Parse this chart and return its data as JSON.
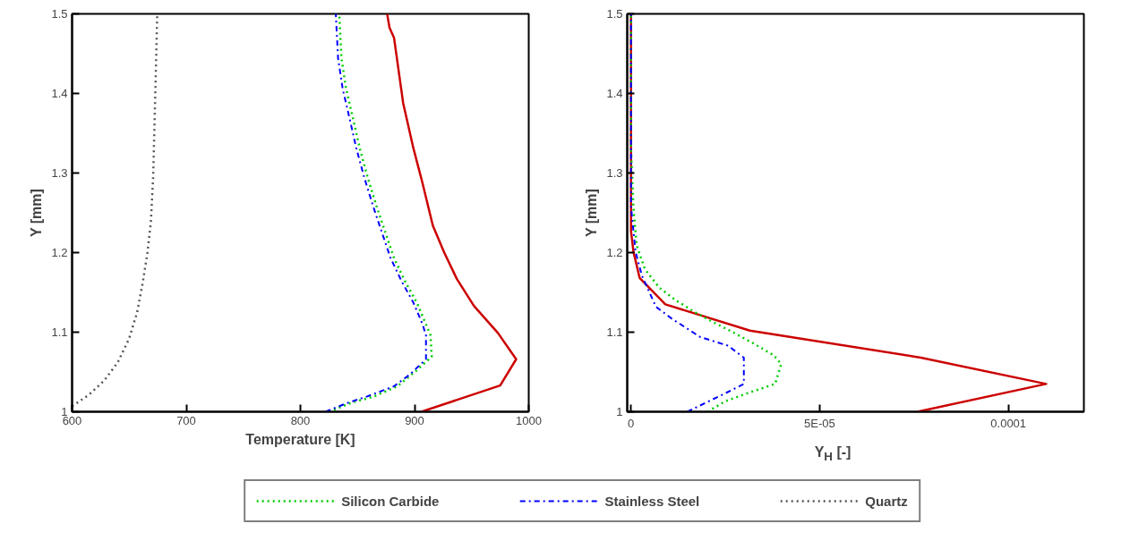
{
  "chart_data": [
    {
      "type": "line",
      "xlabel": "Temperature [K]",
      "ylabel": "Y [mm]",
      "xlim": [
        600,
        1000
      ],
      "ylim": [
        1,
        1.5
      ],
      "xticks": [
        600,
        700,
        800,
        900,
        1000
      ],
      "yticks": [
        1,
        1.1,
        1.2,
        1.3,
        1.4,
        1.5
      ],
      "grid": false,
      "legend": "bottom",
      "series": [
        {
          "color": "#cc0000",
          "line_style": "solid",
          "x": [
            906,
            975,
            989,
            973,
            952,
            937,
            926,
            916,
            907,
            899,
            890,
            882,
            878,
            876
          ],
          "values": [
            1.0,
            1.033,
            1.066,
            1.099,
            1.133,
            1.167,
            1.2,
            1.234,
            1.287,
            1.331,
            1.388,
            1.47,
            1.483,
            1.5
          ]
        },
        {
          "name": "Silicon Carbide",
          "color": "#00cc00",
          "line_style": "dotted",
          "x": [
            825,
            844,
            864,
            885,
            901,
            915,
            914,
            910,
            902,
            892,
            882,
            874,
            867,
            859,
            852,
            846,
            840,
            836,
            834
          ],
          "values": [
            1.0,
            1.011,
            1.019,
            1.032,
            1.051,
            1.069,
            1.096,
            1.11,
            1.137,
            1.163,
            1.193,
            1.227,
            1.257,
            1.294,
            1.331,
            1.369,
            1.406,
            1.444,
            1.5
          ]
        },
        {
          "name": "Stainless Steel",
          "color": "#0000ff",
          "line_style": "dashdot",
          "x": [
            822,
            841,
            858,
            882,
            896,
            910,
            910,
            907,
            899,
            889,
            879,
            871,
            864,
            856,
            849,
            843,
            837,
            833,
            831
          ],
          "values": [
            1.0,
            1.011,
            1.019,
            1.032,
            1.047,
            1.066,
            1.096,
            1.11,
            1.137,
            1.163,
            1.193,
            1.227,
            1.257,
            1.294,
            1.331,
            1.369,
            1.406,
            1.444,
            1.5
          ]
        },
        {
          "name": "Quartz",
          "color": "#555555",
          "line_style": "dotted",
          "x": [
            600,
            614.5,
            628,
            640,
            650,
            657,
            662,
            666,
            669,
            671,
            673,
            674.6
          ],
          "values": [
            1.007,
            1.021,
            1.039,
            1.062,
            1.092,
            1.125,
            1.163,
            1.2,
            1.238,
            1.294,
            1.406,
            1.5
          ]
        }
      ]
    },
    {
      "type": "line",
      "xlabel": "Y$_{H}$ [-]",
      "ylabel": "Y [mm]",
      "xlim": [
        -1e-06,
        0.00012
      ],
      "ylim": [
        1,
        1.5
      ],
      "xticks": [
        {
          "value": 0,
          "label": "0"
        },
        {
          "value": 5e-05,
          "label": "5E-05"
        },
        {
          "value": 0.0001,
          "label": "0.0001"
        }
      ],
      "yticks": [
        1,
        1.1,
        1.2,
        1.3,
        1.4,
        1.5
      ],
      "grid": false,
      "series": [
        {
          "color": "#cc0000",
          "line_style": "solid",
          "x": [
            7.59e-05,
            0.00011,
            7.68e-05,
            3.15e-05,
            9.1e-06,
            2.3e-06,
            6.6e-07,
            0,
            0
          ],
          "values": [
            1.0,
            1.035,
            1.068,
            1.102,
            1.135,
            1.168,
            1.201,
            1.227,
            1.5
          ]
        },
        {
          "color": "#00cc00",
          "line_style": "dotted",
          "x": [
            2.03e-05,
            2.49e-05,
            3.07e-05,
            3.82e-05,
            3.98e-05,
            3.78e-05,
            3.24e-05,
            2.7e-05,
            2.16e-05,
            1.66e-05,
            1.16e-05,
            7.5e-06,
            3.7e-06,
            1.5e-06,
            6.6e-07,
            0,
            0
          ],
          "values": [
            1.0,
            1.013,
            1.023,
            1.035,
            1.06,
            1.071,
            1.086,
            1.1,
            1.113,
            1.126,
            1.141,
            1.156,
            1.179,
            1.209,
            1.256,
            1.331,
            1.5
          ]
        },
        {
          "color": "#0000ff",
          "line_style": "dashdot",
          "x": [
            1.49e-05,
            2.49e-05,
            2.99e-05,
            2.99e-05,
            2.57e-05,
            1.83e-05,
            1.08e-05,
            6.6e-06,
            2.9e-06,
            1.2e-06,
            0,
            0
          ],
          "values": [
            1.0,
            1.023,
            1.035,
            1.068,
            1.083,
            1.094,
            1.117,
            1.132,
            1.171,
            1.201,
            1.258,
            1.5
          ]
        }
      ]
    }
  ]
}
